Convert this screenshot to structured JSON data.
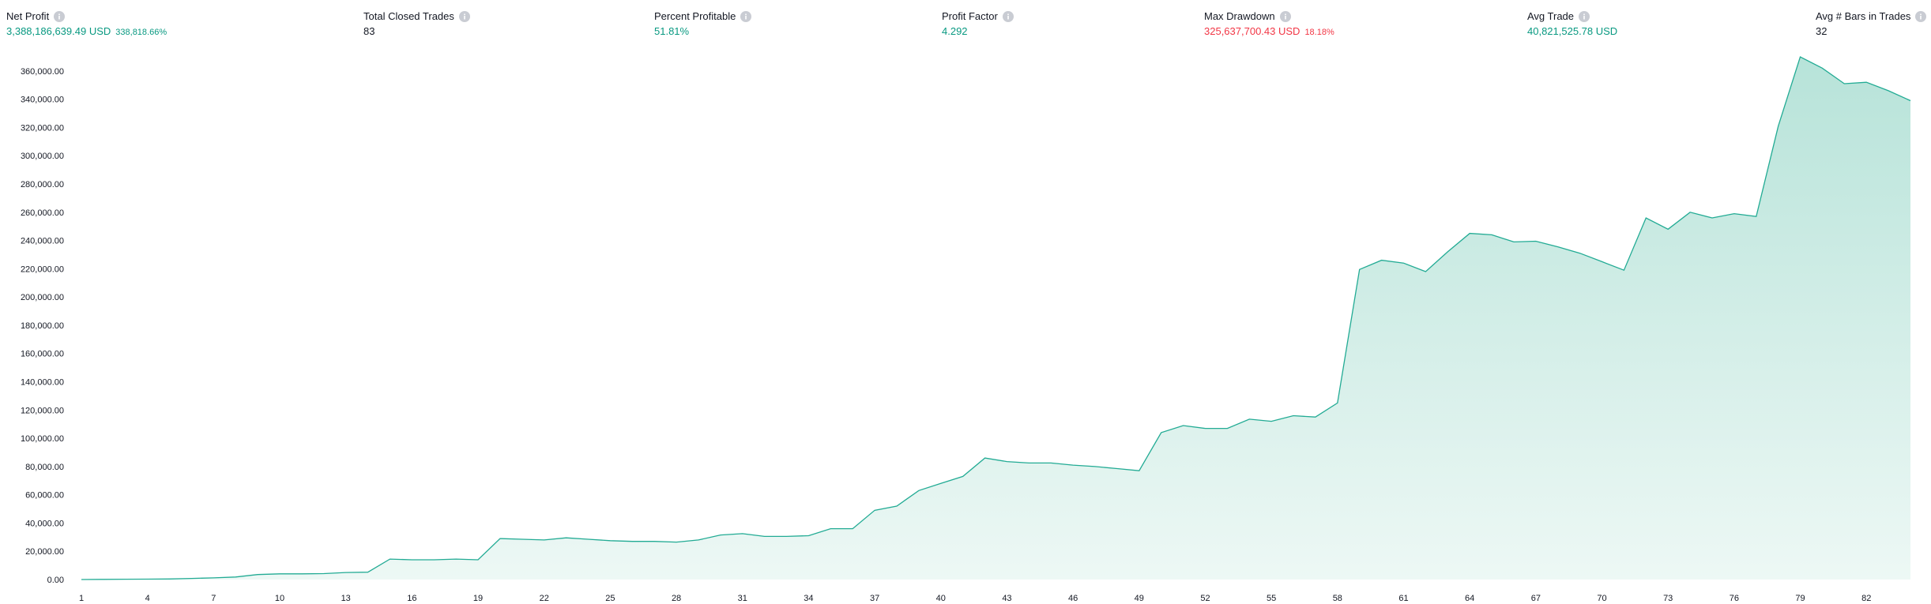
{
  "stats": {
    "net_profit": {
      "label": "Net Profit",
      "value": "3,388,186,639.49 USD",
      "sub": "338,818.66%"
    },
    "total_closed_trades": {
      "label": "Total Closed Trades",
      "value": "83"
    },
    "percent_profitable": {
      "label": "Percent Profitable",
      "value": "51.81%"
    },
    "profit_factor": {
      "label": "Profit Factor",
      "value": "4.292"
    },
    "max_drawdown": {
      "label": "Max Drawdown",
      "value": "325,637,700.43 USD",
      "sub": "18.18%"
    },
    "avg_trade": {
      "label": "Avg Trade",
      "value": "40,821,525.78 USD"
    },
    "avg_bars": {
      "label": "Avg # Bars in Trades",
      "value": "32"
    }
  },
  "colors": {
    "positive": "#089981",
    "negative": "#f23645",
    "line": "#22ab94",
    "area_top": "#b7e3d9",
    "area_bottom": "#edf8f5"
  },
  "chart_data": {
    "type": "area",
    "title": "",
    "xlabel": "",
    "ylabel": "",
    "ylim": [
      0,
      370000
    ],
    "y_ticks": [
      "0.00",
      "20,000.00",
      "40,000.00",
      "60,000.00",
      "80,000.00",
      "100,000.00",
      "120,000.00",
      "140,000.00",
      "160,000.00",
      "180,000.00",
      "200,000.00",
      "220,000.00",
      "240,000.00",
      "260,000.00",
      "280,000.00",
      "300,000.00",
      "320,000.00",
      "340,000.00",
      "360,000.00"
    ],
    "y_tick_values": [
      0,
      20000,
      40000,
      60000,
      80000,
      100000,
      120000,
      140000,
      160000,
      180000,
      200000,
      220000,
      240000,
      260000,
      280000,
      300000,
      320000,
      340000,
      360000
    ],
    "x_ticks": [
      1,
      4,
      7,
      10,
      13,
      16,
      19,
      22,
      25,
      28,
      31,
      34,
      37,
      40,
      43,
      46,
      49,
      52,
      55,
      58,
      61,
      64,
      67,
      70,
      73,
      76,
      79,
      82
    ],
    "grid": false,
    "legend": "none",
    "x": [
      1,
      2,
      3,
      4,
      5,
      6,
      7,
      8,
      9,
      10,
      11,
      12,
      13,
      14,
      15,
      16,
      17,
      18,
      19,
      20,
      21,
      22,
      23,
      24,
      25,
      26,
      27,
      28,
      29,
      30,
      31,
      32,
      33,
      34,
      35,
      36,
      37,
      38,
      39,
      40,
      41,
      42,
      43,
      44,
      45,
      46,
      47,
      48,
      49,
      50,
      51,
      52,
      53,
      54,
      55,
      56,
      57,
      58,
      59,
      60,
      61,
      62,
      63,
      64,
      65,
      66,
      67,
      68,
      69,
      70,
      71,
      72,
      73,
      74,
      75,
      76,
      77,
      78,
      79,
      80,
      81,
      82,
      83,
      84
    ],
    "values": [
      0,
      100,
      200,
      300,
      400,
      800,
      1200,
      1800,
      3500,
      4000,
      4000,
      4200,
      5000,
      5200,
      14500,
      14000,
      14000,
      14500,
      14000,
      29000,
      28500,
      28000,
      29500,
      28500,
      27500,
      27000,
      27000,
      26500,
      28000,
      31500,
      32500,
      30500,
      30500,
      31000,
      36000,
      36000,
      49000,
      52000,
      63000,
      68000,
      73000,
      86000,
      83500,
      82500,
      82500,
      81000,
      80000,
      78500,
      77000,
      104000,
      109000,
      107000,
      107000,
      113500,
      112000,
      116000,
      115000,
      125000,
      219500,
      226000,
      224000,
      218000,
      232000,
      245000,
      244000,
      239000,
      239500,
      235500,
      231000,
      225000,
      219000,
      256000,
      248000,
      260000,
      256000,
      259000,
      257000,
      321000,
      370000,
      362000,
      351000,
      352000,
      346000,
      339000
    ]
  }
}
